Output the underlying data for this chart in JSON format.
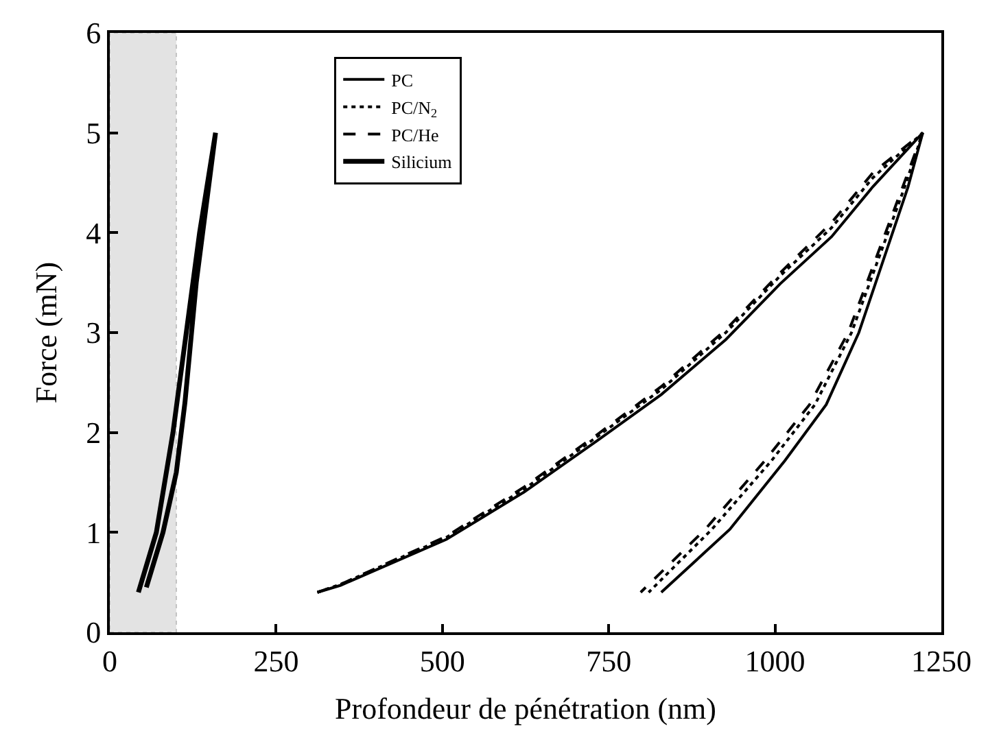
{
  "chart_data": {
    "type": "line",
    "xlabel": "Profondeur de pénétration (nm)",
    "ylabel": "Force (mN)",
    "xlim": [
      0,
      1250
    ],
    "ylim": [
      0,
      6
    ],
    "xticks": [
      0,
      250,
      500,
      750,
      1000,
      1250
    ],
    "yticks": [
      0,
      1,
      2,
      3,
      4,
      5,
      6
    ],
    "grid": false,
    "legend": "top",
    "marker": "none",
    "bands": [
      {
        "axis": "x",
        "from": 0,
        "to": 100,
        "color": "#c8c8c8"
      }
    ],
    "series": [
      {
        "name": "PC",
        "color": "#000000",
        "line_style": "solid",
        "x": [
          312,
          347,
          506,
          622,
          733,
          829,
          926,
          1008,
          1085,
          1147,
          1222,
          1200,
          1126,
          1077,
          1015,
          932,
          829
        ],
        "values": [
          0.4,
          0.47,
          0.93,
          1.4,
          1.92,
          2.38,
          2.93,
          3.49,
          3.96,
          4.46,
          5.0,
          4.46,
          3.0,
          2.28,
          1.72,
          1.03,
          0.4
        ]
      },
      {
        "name": "PC/N$_{2}$",
        "color": "#000000",
        "line_style": "dotted",
        "x": [
          312,
          347,
          506,
          622,
          733,
          829,
          926,
          1008,
          1085,
          1147,
          1222,
          1195,
          1115,
          1060,
          995,
          905,
          810
        ],
        "values": [
          0.4,
          0.48,
          0.95,
          1.43,
          1.96,
          2.43,
          3.0,
          3.57,
          4.05,
          4.55,
          5.0,
          4.46,
          3.0,
          2.28,
          1.72,
          1.03,
          0.4
        ]
      },
      {
        "name": "PC/He",
        "color": "#000000",
        "line_style": "dashed",
        "x": [
          312,
          347,
          506,
          622,
          733,
          829,
          926,
          1008,
          1085,
          1147,
          1222,
          1192,
          1110,
          1052,
          985,
          895,
          798
        ],
        "values": [
          0.4,
          0.48,
          0.96,
          1.45,
          1.98,
          2.46,
          3.03,
          3.6,
          4.1,
          4.6,
          5.0,
          4.46,
          3.0,
          2.28,
          1.72,
          1.03,
          0.4
        ]
      },
      {
        "name": "Silicium",
        "color": "#000000",
        "line_style": "solid",
        "x": [
          43,
          70,
          95,
          115,
          135,
          159,
          130,
          113,
          100,
          80,
          55
        ],
        "values": [
          0.4,
          1.0,
          2.0,
          3.0,
          4.0,
          5.0,
          3.5,
          2.3,
          1.6,
          1.0,
          0.45
        ]
      }
    ]
  }
}
